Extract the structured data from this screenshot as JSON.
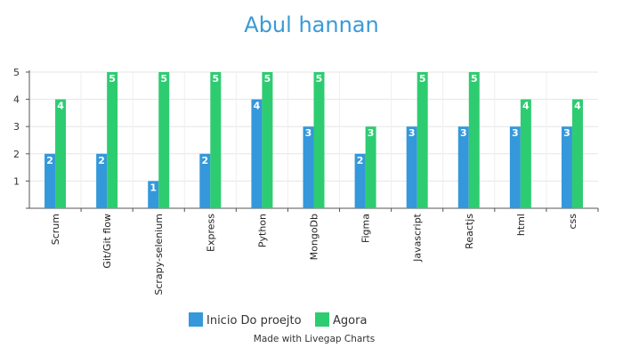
{
  "chart_data": {
    "type": "bar",
    "title": "Abul hannan",
    "categories": [
      "Scrum",
      "Git/Git flow",
      "Scrapy-selenium",
      "Express",
      "Python",
      "MongoDb",
      "Figma",
      "Javascript",
      "Reactjs",
      "html",
      "css"
    ],
    "series": [
      {
        "name": "Inicio Do proejto",
        "color": "#3498db",
        "values": [
          2,
          2,
          1,
          2,
          4,
          3,
          2,
          3,
          3,
          3,
          3
        ]
      },
      {
        "name": "Agora",
        "color": "#2ecc71",
        "values": [
          4,
          5,
          5,
          5,
          5,
          5,
          3,
          5,
          5,
          4,
          4
        ]
      }
    ],
    "ylim": [
      0,
      5
    ],
    "yticks": [
      1,
      2,
      3,
      4,
      5
    ],
    "grid": true,
    "data_labels": true,
    "legend": "bottom-center"
  },
  "footer": {
    "credit": "Made with Livegap Charts"
  }
}
